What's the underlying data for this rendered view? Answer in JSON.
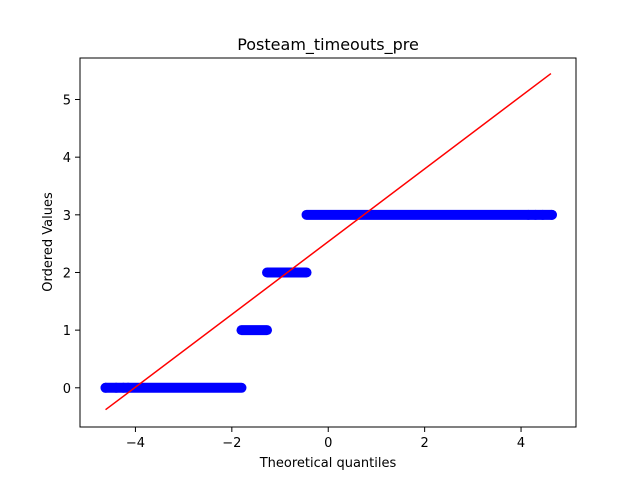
{
  "chart_data": {
    "type": "scatter",
    "title": "Posteam_timeouts_pre",
    "xlabel": "Theoretical quantiles",
    "ylabel": "Ordered Values",
    "xlim": [
      -5.15,
      5.14
    ],
    "ylim": [
      -0.68,
      5.72
    ],
    "xticks": [
      -4,
      -2,
      0,
      2,
      4
    ],
    "yticks": [
      0,
      1,
      2,
      3,
      4,
      5
    ],
    "grid": false,
    "colors": {
      "points": "#0000ff",
      "fit_line": "#ff0000",
      "axes": "#000000"
    },
    "series": [
      {
        "kind": "points",
        "segments": [
          {
            "y": 0,
            "x_from": -4.62,
            "x_to": -1.8,
            "isolated_x": [
              -4.62,
              -4.4,
              -4.25,
              -4.15
            ]
          },
          {
            "y": 1,
            "x_from": -1.8,
            "x_to": -1.27,
            "isolated_x": []
          },
          {
            "y": 2,
            "x_from": -1.27,
            "x_to": -0.45,
            "isolated_x": []
          },
          {
            "y": 3,
            "x_from": -0.45,
            "x_to": 4.64,
            "isolated_x": [
              4.15,
              4.3,
              4.45,
              4.64
            ]
          }
        ]
      },
      {
        "kind": "fit_line",
        "points": [
          [
            -4.62,
            -0.38
          ],
          [
            4.62,
            5.45
          ]
        ]
      }
    ]
  }
}
